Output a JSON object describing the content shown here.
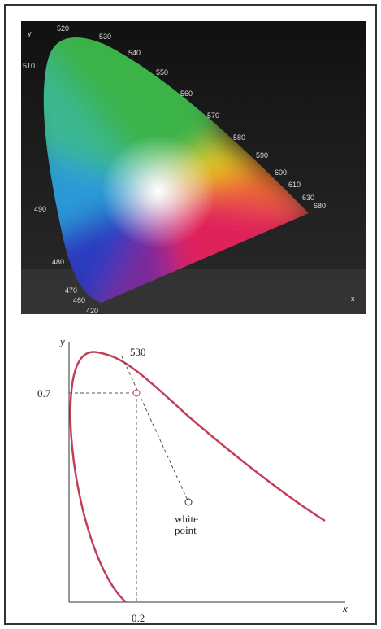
{
  "chromaticity_image": {
    "y_label": "y",
    "x_label": "x",
    "wavelengths": [
      "520",
      "530",
      "540",
      "550",
      "560",
      "570",
      "580",
      "590",
      "600",
      "610",
      "630",
      "680",
      "510",
      "490",
      "480",
      "470",
      "460",
      "420"
    ]
  },
  "schematic": {
    "y_label": "y",
    "x_label": "x",
    "wavelength": "530",
    "y_value": "0.7",
    "x_value": "0.2",
    "white_point": [
      "white",
      "point"
    ]
  }
}
